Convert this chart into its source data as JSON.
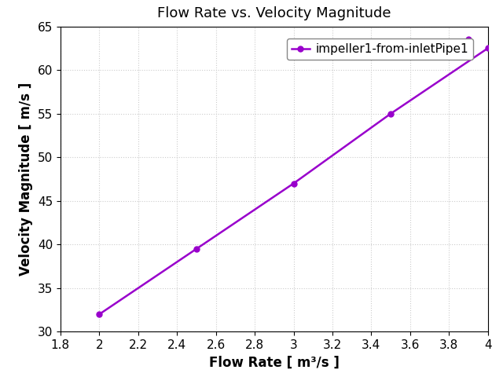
{
  "title": "Flow Rate vs. Velocity Magnitude",
  "xlabel": "Flow Rate [ m³/s ]",
  "ylabel": "Velocity Magnitude [ m/s ]",
  "legend_label": "impeller1-from-inletPipe1",
  "x": [
    2.0,
    2.5,
    3.0,
    3.5,
    4.0
  ],
  "y": [
    32.0,
    39.5,
    47.0,
    55.0,
    62.5
  ],
  "x_extra": [
    3.9
  ],
  "y_extra": [
    63.5
  ],
  "line_color": "#9900cc",
  "marker": "o",
  "marker_size": 5,
  "linewidth": 1.8,
  "xlim": [
    1.8,
    4.0
  ],
  "ylim": [
    30,
    65
  ],
  "xticks": [
    1.8,
    2.0,
    2.2,
    2.4,
    2.6,
    2.8,
    3.0,
    3.2,
    3.4,
    3.6,
    3.8,
    4.0
  ],
  "yticks": [
    30,
    35,
    40,
    45,
    50,
    55,
    60,
    65
  ],
  "grid_color": "#cccccc",
  "grid_linestyle": ":",
  "background_color": "#ffffff",
  "title_fontsize": 13,
  "label_fontsize": 12,
  "tick_fontsize": 11,
  "legend_fontsize": 11
}
